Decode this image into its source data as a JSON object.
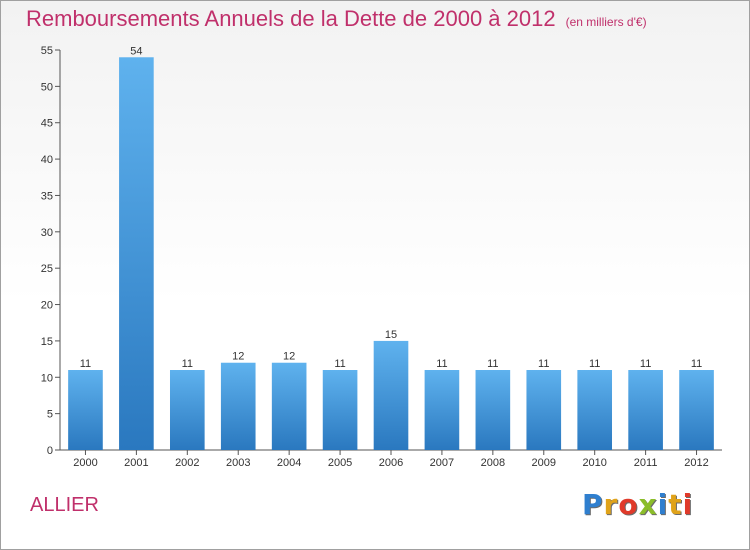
{
  "header": {
    "title": "Remboursements Annuels de la Dette de 2000 à 2012",
    "subtitle": "(en milliers d'€)"
  },
  "footer": {
    "region": "ALLIER",
    "logo": "Proxiti",
    "logo_letters": [
      {
        "ch": "P",
        "color": "#2f7fcf"
      },
      {
        "ch": "r",
        "color": "#e0a31a"
      },
      {
        "ch": "o",
        "color": "#e03a2a"
      },
      {
        "ch": "x",
        "color": "#8bbd2a"
      },
      {
        "ch": "i",
        "color": "#2f7fcf"
      },
      {
        "ch": "t",
        "color": "#e0a31a"
      },
      {
        "ch": "i",
        "color": "#e03a2a"
      }
    ]
  },
  "colors": {
    "bar_top": "#5fb2ee",
    "bar_bottom": "#2a78bf",
    "title": "#c0306b"
  },
  "chart_data": {
    "type": "bar",
    "title": "Remboursements Annuels de la Dette de 2000 à 2012",
    "subtitle": "(en milliers d'€)",
    "categories": [
      "2000",
      "2001",
      "2002",
      "2003",
      "2004",
      "2005",
      "2006",
      "2007",
      "2008",
      "2009",
      "2010",
      "2011",
      "2012"
    ],
    "values": [
      11,
      54,
      11,
      12,
      12,
      11,
      15,
      11,
      11,
      11,
      11,
      11,
      11
    ],
    "ylim": [
      0,
      55
    ],
    "yticks": [
      0,
      5,
      10,
      15,
      20,
      25,
      30,
      35,
      40,
      45,
      50,
      55
    ],
    "grid": false,
    "legend": "none"
  }
}
